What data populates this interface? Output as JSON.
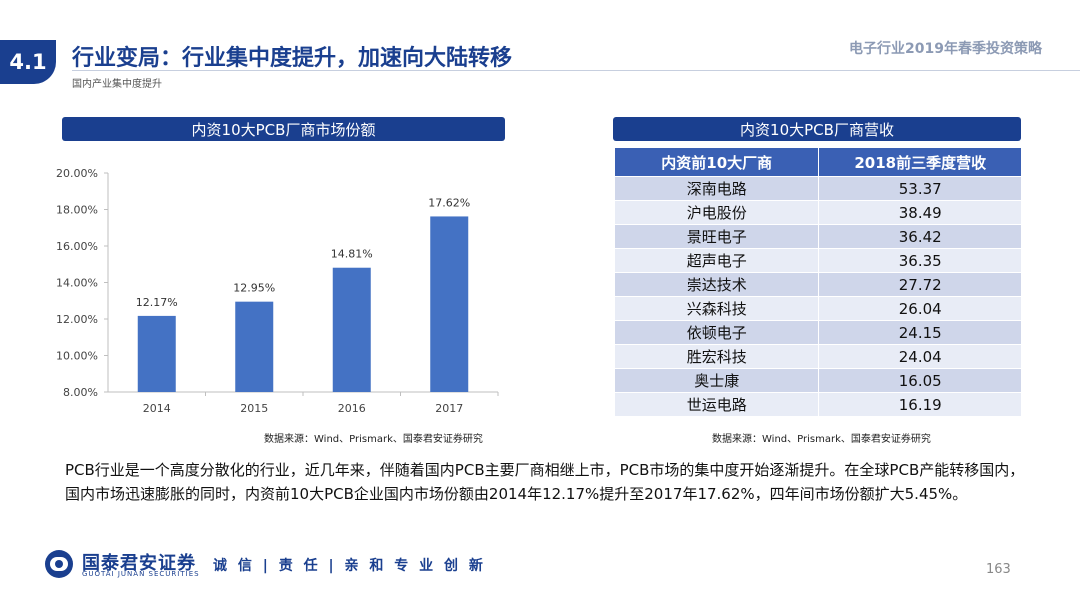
{
  "header": {
    "section_num": "4.1",
    "title": "行业变局：行业集中度提升，加速向大陆转移",
    "subtitle": "国内产业集中度提升",
    "report_title": "电子行业2019年春季投资策略"
  },
  "chart_panel": {
    "heading": "内资10大PCB厂商市场份额",
    "source": "数据来源：Wind、Prismark、国泰君安证券研究"
  },
  "chart_data": {
    "type": "bar",
    "title": "",
    "categories": [
      "2014",
      "2015",
      "2016",
      "2017"
    ],
    "values": [
      12.17,
      12.95,
      14.81,
      17.62
    ],
    "value_labels": [
      "12.17%",
      "12.95%",
      "14.81%",
      "17.62%"
    ],
    "ylim": [
      8.0,
      20.0
    ],
    "yticks": [
      8.0,
      10.0,
      12.0,
      14.0,
      16.0,
      18.0,
      20.0
    ],
    "ytick_labels": [
      "8.00%",
      "10.00%",
      "12.00%",
      "14.00%",
      "16.00%",
      "18.00%",
      "20.00%"
    ],
    "xlabel": "",
    "ylabel": "",
    "bar_color": "#4472c4",
    "grid": false
  },
  "table_panel": {
    "heading": "内资10大PCB厂商营收",
    "columns": [
      "内资前10大厂商",
      "2018前三季度营收"
    ],
    "rows": [
      [
        "深南电路",
        "53.37"
      ],
      [
        "沪电股份",
        "38.49"
      ],
      [
        "景旺电子",
        "36.42"
      ],
      [
        "超声电子",
        "36.35"
      ],
      [
        "崇达技术",
        "27.72"
      ],
      [
        "兴森科技",
        "26.04"
      ],
      [
        "依顿电子",
        "24.15"
      ],
      [
        "胜宏科技",
        "24.04"
      ],
      [
        "奥士康",
        "16.05"
      ],
      [
        "世运电路",
        "16.19"
      ]
    ],
    "source": "数据来源：Wind、Prismark、国泰君安证券研究"
  },
  "body_text": "PCB行业是一个高度分散化的行业，近几年来，伴随着国内PCB主要厂商相继上市，PCB市场的集中度开始逐渐提升。在全球PCB产能转移国内，国内市场迅速膨胀的同时，内资前10大PCB企业国内市场份额由2014年12.17%提升至2017年17.62%，四年间市场份额扩大5.45%。",
  "footer": {
    "company_name": "国泰君安证券",
    "company_en": "GUOTAI JUNAN SECURITIES",
    "slogan": "诚 信 | 责 任 | 亲 和  专 业  创 新",
    "page_number": "163"
  },
  "colors": {
    "brand": "#1a3f8f",
    "table_header": "#3a60b4",
    "row_odd": "#cfd6ea",
    "row_even": "#e8ecf6"
  }
}
